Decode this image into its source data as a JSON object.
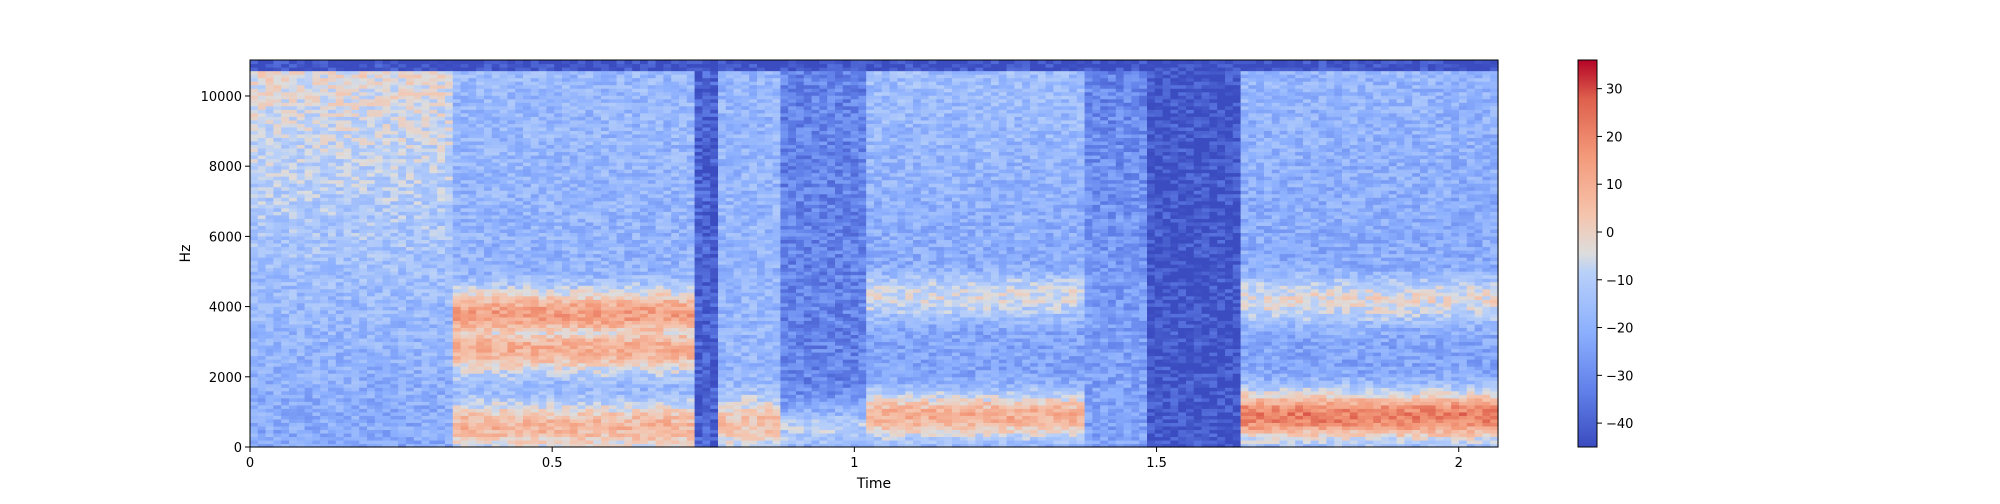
{
  "chart_data": {
    "type": "heatmap",
    "subtype": "spectrogram",
    "title": "",
    "xlabel": "Time",
    "ylabel": "Hz",
    "xlim": [
      0,
      2.065
    ],
    "ylim": [
      0,
      11025
    ],
    "x_ticks": [
      0,
      0.5,
      1,
      1.5,
      2
    ],
    "x_tick_labels": [
      "0",
      "0.5",
      "1",
      "1.5",
      "2"
    ],
    "y_ticks": [
      0,
      2000,
      4000,
      6000,
      8000,
      10000
    ],
    "y_tick_labels": [
      "0",
      "2000",
      "4000",
      "6000",
      "8000",
      "10000"
    ],
    "colormap": "coolwarm",
    "colorbar": {
      "range": [
        -45,
        36
      ],
      "ticks": [
        -40,
        -30,
        -20,
        -10,
        0,
        10,
        20,
        30
      ],
      "tick_labels": [
        "−40",
        "−30",
        "−20",
        "−10",
        "0",
        "10",
        "20",
        "30"
      ]
    },
    "grid": false,
    "segments": [
      {
        "t_start": 0.0,
        "t_end": 0.34,
        "level_db": -22,
        "hf_level_db": -2,
        "formants": []
      },
      {
        "t_start": 0.34,
        "t_end": 0.74,
        "level_db": -20,
        "hf_level_db": -17,
        "formants": [
          {
            "hz": 3800,
            "level_db": 14
          },
          {
            "hz": 2800,
            "level_db": 10
          },
          {
            "hz": 600,
            "level_db": 8
          }
        ]
      },
      {
        "t_start": 0.74,
        "t_end": 0.78,
        "level_db": -40,
        "hf_level_db": -40,
        "formants": []
      },
      {
        "t_start": 0.78,
        "t_end": 0.88,
        "level_db": -18,
        "hf_level_db": -18,
        "formants": [
          {
            "hz": 700,
            "level_db": 5
          }
        ]
      },
      {
        "t_start": 0.88,
        "t_end": 1.02,
        "level_db": -32,
        "hf_level_db": -40,
        "formants": [
          {
            "hz": 500,
            "level_db": -10
          }
        ]
      },
      {
        "t_start": 1.02,
        "t_end": 1.38,
        "level_db": -25,
        "hf_level_db": -15,
        "formants": [
          {
            "hz": 4300,
            "level_db": -5
          },
          {
            "hz": 900,
            "level_db": 10
          }
        ]
      },
      {
        "t_start": 1.38,
        "t_end": 1.49,
        "level_db": -24,
        "hf_level_db": -32,
        "formants": []
      },
      {
        "t_start": 1.49,
        "t_end": 1.64,
        "level_db": -43,
        "hf_level_db": -43,
        "formants": []
      },
      {
        "t_start": 1.64,
        "t_end": 2.065,
        "level_db": -24,
        "hf_level_db": -18,
        "formants": [
          {
            "hz": 4200,
            "level_db": -3
          },
          {
            "hz": 900,
            "level_db": 22
          }
        ]
      }
    ]
  }
}
